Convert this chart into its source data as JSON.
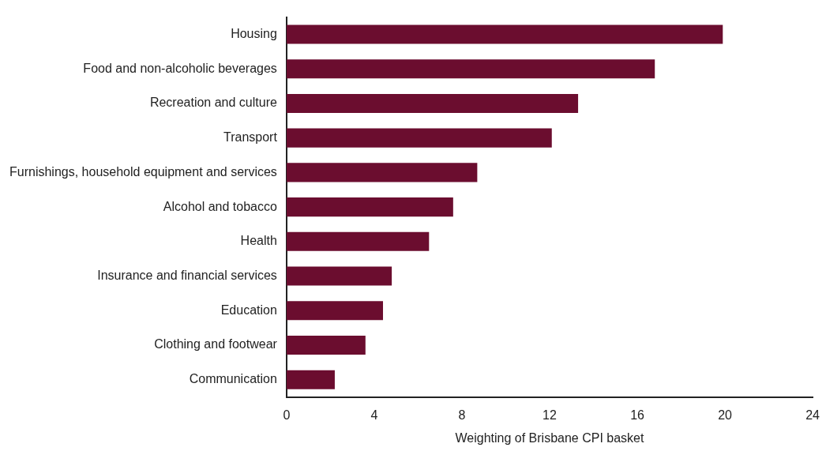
{
  "chart_data": {
    "type": "bar",
    "orientation": "horizontal",
    "xlabel": "Weighting of Brisbane CPI basket",
    "categories": [
      "Housing",
      "Food and non-alcoholic beverages",
      "Recreation and culture",
      "Transport",
      "Furnishings, household equipment and services",
      "Alcohol and tobacco",
      "Health",
      "Insurance and financial services",
      "Education",
      "Clothing and footwear",
      "Communication"
    ],
    "values": [
      19.9,
      16.8,
      13.3,
      12.1,
      8.7,
      7.6,
      6.5,
      4.8,
      4.4,
      3.6,
      2.2
    ],
    "color": "#6b0d2f",
    "xlim": [
      0,
      24
    ],
    "xticks": [
      0,
      4,
      8,
      12,
      16,
      20,
      24
    ],
    "grid": false,
    "legend": false
  }
}
